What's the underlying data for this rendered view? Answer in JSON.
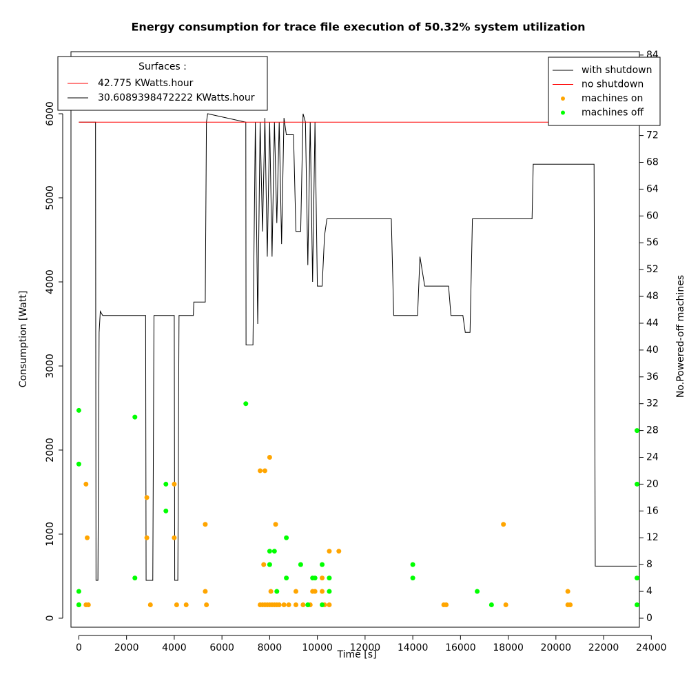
{
  "chart_data": {
    "type": "line",
    "title": "Energy consumption for trace file execution of 50.32% system utilization",
    "x_label": "Time [s]",
    "y_label": "Consumption [Watt]",
    "y2_label": "No.Powered-off machines",
    "xlim": [
      -330,
      23500
    ],
    "ylim": [
      -107,
      6738
    ],
    "y2lim": [
      -1.34,
      84.5
    ],
    "xticks": [
      0,
      2000,
      4000,
      6000,
      8000,
      10000,
      12000,
      14000,
      16000,
      18000,
      20000,
      22000,
      24000
    ],
    "yticks": [
      0,
      1000,
      2000,
      3000,
      4000,
      5000,
      6000
    ],
    "y2ticks": [
      0,
      4,
      8,
      12,
      16,
      20,
      24,
      28,
      32,
      36,
      40,
      44,
      48,
      52,
      56,
      60,
      64,
      68,
      72,
      76,
      80,
      84
    ],
    "legend": "topright",
    "surfaces_legend": {
      "title": "Surfaces :",
      "entries": [
        {
          "label": "42.775  KWatts.hour",
          "color": "#ff0000"
        },
        {
          "label": "30.6089398472222  KWatts.hour",
          "color": "#000000"
        }
      ]
    },
    "series": [
      {
        "name": "with shutdown",
        "color": "#000000",
        "kind": "line",
        "x": [
          0,
          700,
          720,
          800,
          850,
          900,
          1000,
          2800,
          2820,
          3100,
          3150,
          4000,
          4020,
          4150,
          4200,
          4800,
          4820,
          5300,
          5350,
          5400,
          7000,
          7010,
          7300,
          7400,
          7500,
          7600,
          7700,
          7800,
          7900,
          8000,
          8100,
          8200,
          8300,
          8400,
          8500,
          8600,
          8700,
          9000,
          9100,
          9300,
          9400,
          9500,
          9600,
          9700,
          9800,
          9900,
          10000,
          10200,
          10300,
          10400,
          13100,
          13200,
          14200,
          14300,
          14500,
          15500,
          15600,
          16100,
          16200,
          16400,
          16500,
          19000,
          19050,
          21600,
          21650,
          23400
        ],
        "values": [
          5900,
          5900,
          450,
          450,
          3400,
          3650,
          3600,
          3600,
          450,
          450,
          3600,
          3600,
          450,
          450,
          3600,
          3600,
          3760,
          3760,
          5900,
          6000,
          5900,
          3250,
          3250,
          5900,
          3500,
          5900,
          4600,
          5950,
          4300,
          5900,
          4300,
          5900,
          4700,
          5900,
          4450,
          5950,
          5750,
          5750,
          4600,
          4600,
          6000,
          5900,
          4200,
          5900,
          4000,
          5900,
          3950,
          3950,
          4550,
          4750,
          4750,
          3600,
          3600,
          4300,
          3950,
          3950,
          3600,
          3600,
          3400,
          3400,
          4750,
          4750,
          5400,
          5400,
          620,
          620
        ]
      },
      {
        "name": "no shutdown",
        "color": "#ff0000",
        "kind": "line",
        "x": [
          0,
          23400
        ],
        "values": [
          5900,
          5900
        ]
      },
      {
        "name": "machines on",
        "color": "#ffa500",
        "kind": "points",
        "axis": "y2",
        "x": [
          0,
          300,
          350,
          300,
          400,
          2850,
          2850,
          3000,
          4000,
          4000,
          4100,
          4500,
          5300,
          5300,
          5350,
          7600,
          7800,
          7750,
          8000,
          8050,
          7600,
          7700,
          7800,
          7900,
          8000,
          8100,
          8200,
          8300,
          8400,
          8600,
          8800,
          9100,
          9400,
          9700,
          8250,
          9100,
          9800,
          9900,
          10200,
          10200,
          10300,
          10500,
          10900,
          10500,
          15300,
          15400,
          17800,
          17900,
          20500,
          20500,
          20600
        ],
        "values": [
          2,
          20,
          12,
          2,
          2,
          18,
          12,
          2,
          20,
          12,
          2,
          2,
          14,
          4,
          2,
          22,
          22,
          8,
          24,
          4,
          2,
          2,
          2,
          2,
          2,
          2,
          2,
          2,
          2,
          2,
          2,
          2,
          2,
          2,
          14,
          4,
          4,
          4,
          6,
          4,
          2,
          10,
          10,
          2,
          2,
          2,
          14,
          2,
          4,
          2,
          2
        ]
      },
      {
        "name": "machines off",
        "color": "#00ff00",
        "kind": "points",
        "axis": "y2",
        "x": [
          0,
          0,
          0,
          0,
          2350,
          2350,
          3650,
          3650,
          7000,
          8000,
          8200,
          8000,
          8300,
          8700,
          8700,
          9300,
          9600,
          9800,
          9900,
          10200,
          10200,
          10500,
          10500,
          14000,
          14000,
          16700,
          17300,
          23400,
          23400,
          23400,
          23400
        ],
        "values": [
          31,
          23,
          4,
          2,
          30,
          6,
          20,
          16,
          32,
          10,
          10,
          8,
          4,
          12,
          6,
          8,
          2,
          6,
          6,
          8,
          2,
          6,
          4,
          8,
          6,
          4,
          2,
          28,
          20,
          6,
          2
        ]
      }
    ]
  }
}
